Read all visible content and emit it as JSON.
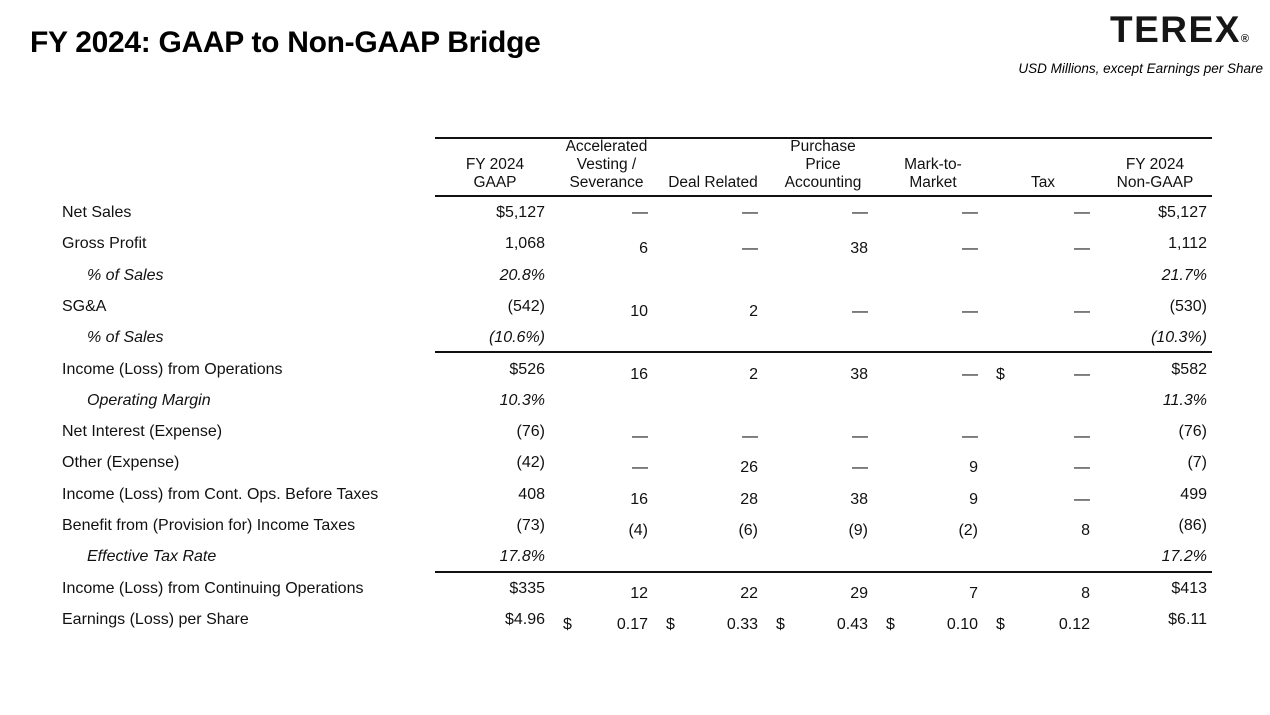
{
  "page": {
    "title": "FY 2024: GAAP to Non-GAAP Bridge",
    "brand": {
      "logo_text": "TEREX",
      "registered_mark": "®",
      "subtitle": "USD Millions, except Earnings per Share"
    }
  },
  "table": {
    "column_headers": [
      {
        "lines": [
          "FY 2024",
          "GAAP"
        ]
      },
      {
        "lines": [
          "Accelerated",
          "Vesting /",
          "Severance"
        ]
      },
      {
        "lines": [
          "Deal Related"
        ]
      },
      {
        "lines": [
          "Purchase",
          "Price",
          "Accounting"
        ]
      },
      {
        "lines": [
          "Mark-to-",
          "Market"
        ]
      },
      {
        "lines": [
          "Tax"
        ]
      },
      {
        "lines": [
          "FY 2024",
          "Non-GAAP"
        ]
      }
    ],
    "rows": [
      {
        "label": "Net Sales",
        "style": "normal",
        "offset": false,
        "cells": [
          {
            "v": "$5,127"
          },
          {
            "v": "—"
          },
          {
            "v": "—"
          },
          {
            "v": "—"
          },
          {
            "v": "—"
          },
          {
            "v": "—"
          },
          {
            "v": "$5,127"
          }
        ]
      },
      {
        "label": "Gross Profit",
        "style": "normal",
        "offset": true,
        "cells": [
          {
            "v": "1,068"
          },
          {
            "v": "6"
          },
          {
            "v": "—"
          },
          {
            "v": "38"
          },
          {
            "v": "—"
          },
          {
            "v": "—"
          },
          {
            "v": "1,112"
          }
        ]
      },
      {
        "label": "% of Sales",
        "style": "italic",
        "offset": false,
        "cells": [
          {
            "v": "20.8%"
          },
          {
            "v": ""
          },
          {
            "v": ""
          },
          {
            "v": ""
          },
          {
            "v": ""
          },
          {
            "v": ""
          },
          {
            "v": "21.7%"
          }
        ]
      },
      {
        "label": "SG&A",
        "style": "normal",
        "offset": true,
        "cells": [
          {
            "v": "(542)"
          },
          {
            "v": "10"
          },
          {
            "v": "2"
          },
          {
            "v": "—"
          },
          {
            "v": "—"
          },
          {
            "v": "—"
          },
          {
            "v": "(530)"
          }
        ]
      },
      {
        "label": "% of Sales",
        "style": "italic",
        "offset": false,
        "rule_after": true,
        "cells": [
          {
            "v": "(10.6%)"
          },
          {
            "v": ""
          },
          {
            "v": ""
          },
          {
            "v": ""
          },
          {
            "v": ""
          },
          {
            "v": ""
          },
          {
            "v": "(10.3%)"
          }
        ]
      },
      {
        "label": "Income (Loss) from Operations",
        "style": "normal",
        "offset": true,
        "cells": [
          {
            "v": "$526"
          },
          {
            "v": "16"
          },
          {
            "v": "2"
          },
          {
            "v": "38"
          },
          {
            "v": "—"
          },
          {
            "pre": "$",
            "v": "—"
          },
          {
            "v": "$582"
          }
        ]
      },
      {
        "label": "Operating Margin",
        "style": "italic",
        "offset": false,
        "cells": [
          {
            "v": "10.3%"
          },
          {
            "v": ""
          },
          {
            "v": ""
          },
          {
            "v": ""
          },
          {
            "v": ""
          },
          {
            "v": ""
          },
          {
            "v": "11.3%"
          }
        ]
      },
      {
        "label": "Net Interest (Expense)",
        "style": "normal",
        "offset": true,
        "cells": [
          {
            "v": "(76)"
          },
          {
            "v": "—"
          },
          {
            "v": "—"
          },
          {
            "v": "—"
          },
          {
            "v": "—"
          },
          {
            "v": "—"
          },
          {
            "v": "(76)"
          }
        ]
      },
      {
        "label": "Other (Expense)",
        "style": "normal",
        "offset": true,
        "cells": [
          {
            "v": "(42)"
          },
          {
            "v": "—"
          },
          {
            "v": "26"
          },
          {
            "v": "—"
          },
          {
            "v": "9"
          },
          {
            "v": "—"
          },
          {
            "v": "(7)"
          }
        ]
      },
      {
        "label": "Income (Loss) from Cont. Ops. Before Taxes",
        "style": "normal",
        "offset": true,
        "cells": [
          {
            "v": "408"
          },
          {
            "v": "16"
          },
          {
            "v": "28"
          },
          {
            "v": "38"
          },
          {
            "v": "9"
          },
          {
            "v": "—"
          },
          {
            "v": "499"
          }
        ]
      },
      {
        "label": "Benefit from (Provision for) Income Taxes",
        "style": "normal",
        "offset": true,
        "cells": [
          {
            "v": "(73)"
          },
          {
            "v": "(4)"
          },
          {
            "v": "(6)"
          },
          {
            "v": "(9)"
          },
          {
            "v": "(2)"
          },
          {
            "v": "8"
          },
          {
            "v": "(86)"
          }
        ]
      },
      {
        "label": "Effective Tax Rate",
        "style": "italic",
        "offset": false,
        "rule_after": true,
        "cells": [
          {
            "v": "17.8%"
          },
          {
            "v": ""
          },
          {
            "v": ""
          },
          {
            "v": ""
          },
          {
            "v": ""
          },
          {
            "v": ""
          },
          {
            "v": "17.2%"
          }
        ]
      },
      {
        "label": "Income (Loss) from Continuing Operations",
        "style": "normal",
        "offset": true,
        "cells": [
          {
            "v": "$335"
          },
          {
            "v": "12"
          },
          {
            "v": "22"
          },
          {
            "v": "29"
          },
          {
            "v": "7"
          },
          {
            "v": "8"
          },
          {
            "v": "$413"
          }
        ]
      },
      {
        "label": "Earnings (Loss) per Share",
        "style": "normal",
        "offset": true,
        "cells": [
          {
            "v": "$4.96"
          },
          {
            "pre": "$",
            "v": "0.17"
          },
          {
            "pre": "$",
            "v": "0.33"
          },
          {
            "pre": "$",
            "v": "0.43"
          },
          {
            "pre": "$",
            "v": "0.10"
          },
          {
            "pre": "$",
            "v": "0.12"
          },
          {
            "v": "$6.11"
          }
        ]
      }
    ]
  },
  "colors": {
    "background": "#ffffff",
    "text": "#111111",
    "rule": "#111111"
  }
}
